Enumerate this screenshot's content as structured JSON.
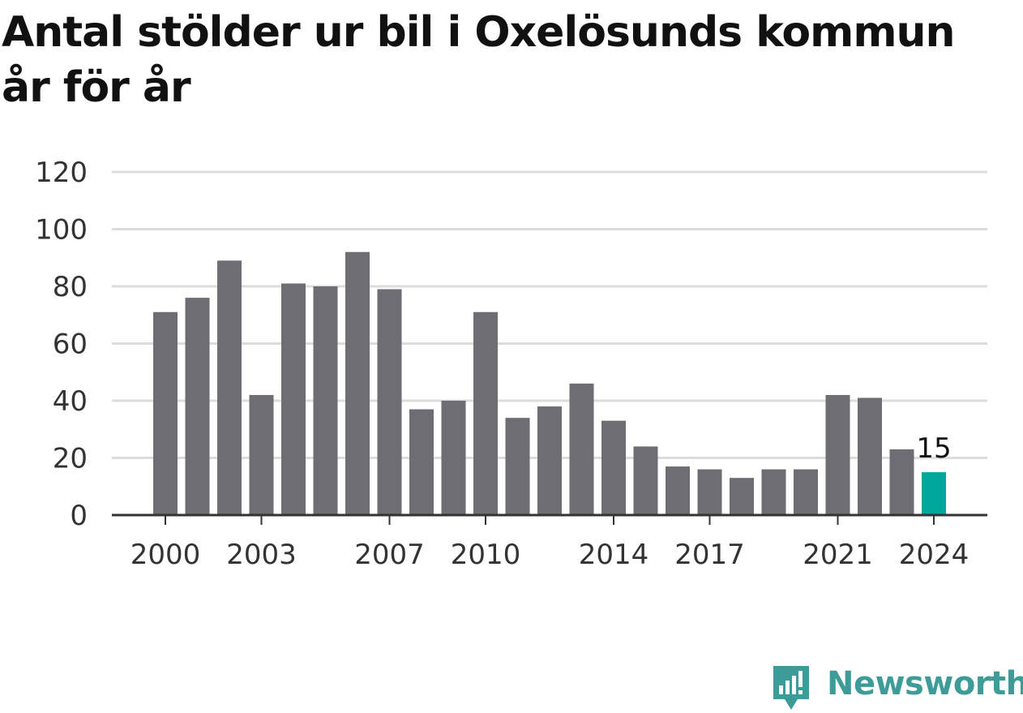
{
  "title": "Antal stölder ur bil i Oxelösunds kommun år för år",
  "brand": {
    "name": "Newsworthy",
    "icon": "newsworthy-logo-icon",
    "color": "#3d9c97"
  },
  "colors": {
    "bar": "#6e6d73",
    "highlight": "#00a79a",
    "grid": "#dcdcdc",
    "axis": "#333333"
  },
  "chart_data": {
    "type": "bar",
    "title": "Antal stölder ur bil i Oxelösunds kommun år för år",
    "xlabel": "",
    "ylabel": "",
    "categories": [
      "2000",
      "2001",
      "2002",
      "2003",
      "2004",
      "2005",
      "2006",
      "2007",
      "2008",
      "2009",
      "2010",
      "2011",
      "2012",
      "2013",
      "2014",
      "2015",
      "2016",
      "2017",
      "2018",
      "2019",
      "2020",
      "2021",
      "2022",
      "2023",
      "2024"
    ],
    "values": [
      71,
      76,
      89,
      42,
      81,
      80,
      92,
      79,
      37,
      40,
      71,
      34,
      38,
      46,
      33,
      24,
      17,
      16,
      13,
      16,
      16,
      42,
      41,
      23,
      15
    ],
    "x_tick_labels": [
      "2000",
      "2003",
      "2007",
      "2010",
      "2014",
      "2017",
      "2021",
      "2024"
    ],
    "y_ticks": [
      0,
      20,
      40,
      60,
      80,
      100,
      120
    ],
    "ylim": [
      0,
      120
    ],
    "highlight": {
      "category": "2024",
      "label": "15"
    },
    "grid": true,
    "legend": "none"
  }
}
